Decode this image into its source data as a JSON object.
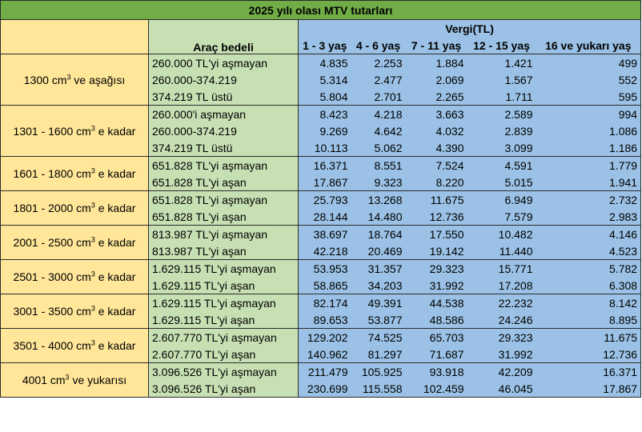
{
  "title": "2025 yılı olası MTV tutarları",
  "header": {
    "arac_bedeli": "Araç bedeli",
    "vergi": "Vergi(TL)",
    "ages": [
      "1 - 3 yaş",
      "4 - 6 yaş",
      "7 - 11 yaş",
      "12 - 15 yaş",
      "16 ve yukarı yaş"
    ]
  },
  "groups": [
    {
      "engine": "1300 cm³ ve aşağısı",
      "rows": [
        {
          "price": "260.000 TL'yi aşmayan",
          "values": [
            "4.835",
            "2.253",
            "1.884",
            "1.421",
            "499"
          ]
        },
        {
          "price": "260.000-374.219",
          "values": [
            "5.314",
            "2.477",
            "2.069",
            "1.567",
            "552"
          ]
        },
        {
          "price": "374.219 TL üstü",
          "values": [
            "5.804",
            "2.701",
            "2.265",
            "1.711",
            "595"
          ]
        }
      ]
    },
    {
      "engine": "1301 - 1600 cm³ e kadar",
      "rows": [
        {
          "price": "260.000'i aşmayan",
          "values": [
            "8.423",
            "4.218",
            "3.663",
            "2.589",
            "994"
          ]
        },
        {
          "price": "260.000-374.219",
          "values": [
            "9.269",
            "4.642",
            "4.032",
            "2.839",
            "1.086"
          ]
        },
        {
          "price": "374.219 TL üstü",
          "values": [
            "10.113",
            "5.062",
            "4.390",
            "3.099",
            "1.186"
          ]
        }
      ]
    },
    {
      "engine": "1601 - 1800 cm³ e kadar",
      "rows": [
        {
          "price": "651.828 TL'yi aşmayan",
          "values": [
            "16.371",
            "8.551",
            "7.524",
            "4.591",
            "1.779"
          ]
        },
        {
          "price": "651.828 TL'yi aşan",
          "values": [
            "17.867",
            "9.323",
            "8.220",
            "5.015",
            "1.941"
          ]
        }
      ]
    },
    {
      "engine": "1801 - 2000 cm³ e kadar",
      "rows": [
        {
          "price": "651.828 TL'yi aşmayan",
          "values": [
            "25.793",
            "13.268",
            "11.675",
            "6.949",
            "2.732"
          ]
        },
        {
          "price": "651.828 TL'yi aşan",
          "values": [
            "28.144",
            "14.480",
            "12.736",
            "7.579",
            "2.983"
          ]
        }
      ]
    },
    {
      "engine": "2001 - 2500 cm³ e kadar",
      "rows": [
        {
          "price": "813.987 TL'yi aşmayan",
          "values": [
            "38.697",
            "18.764",
            "17.550",
            "10.482",
            "4.146"
          ]
        },
        {
          "price": "813.987 TL'yi aşan",
          "values": [
            "42.218",
            "20.469",
            "19.142",
            "11.440",
            "4.523"
          ]
        }
      ]
    },
    {
      "engine": "2501 - 3000 cm³ e kadar",
      "rows": [
        {
          "price": "1.629.115 TL'yi aşmayan",
          "values": [
            "53.953",
            "31.357",
            "29.323",
            "15.771",
            "5.782"
          ]
        },
        {
          "price": "1.629.115 TL'yi aşan",
          "values": [
            "58.865",
            "34.203",
            "31.992",
            "17.208",
            "6.308"
          ]
        }
      ]
    },
    {
      "engine": "3001 - 3500 cm³ e kadar",
      "rows": [
        {
          "price": "1.629.115 TL'yi aşmayan",
          "values": [
            "82.174",
            "49.391",
            "44.538",
            "22.232",
            "8.142"
          ]
        },
        {
          "price": "1.629.115 TL'yi aşan",
          "values": [
            "89.653",
            "53.877",
            "48.586",
            "24.246",
            "8.895"
          ]
        }
      ]
    },
    {
      "engine": "3501 - 4000 cm³ e kadar",
      "rows": [
        {
          "price": "2.607.770 TL'yi aşmayan",
          "values": [
            "129.202",
            "74.525",
            "65.703",
            "29.323",
            "11.675"
          ]
        },
        {
          "price": "2.607.770 TL'yi aşan",
          "values": [
            "140.962",
            "81.297",
            "71.687",
            "31.992",
            "12.736"
          ]
        }
      ]
    },
    {
      "engine": "4001 cm³ ve yukarısı",
      "rows": [
        {
          "price": "3.096.526 TL'yi aşmayan",
          "values": [
            "211.479",
            "105.925",
            "93.918",
            "42.209",
            "16.371"
          ]
        },
        {
          "price": "3.096.526 TL'yi aşan",
          "values": [
            "230.699",
            "115.558",
            "102.459",
            "46.045",
            "17.867"
          ]
        }
      ]
    }
  ],
  "colors": {
    "title_bg": "#70ad47",
    "engine_bg": "#ffe699",
    "price_bg": "#c6e0b4",
    "tax_bg": "#9bc2e6"
  }
}
